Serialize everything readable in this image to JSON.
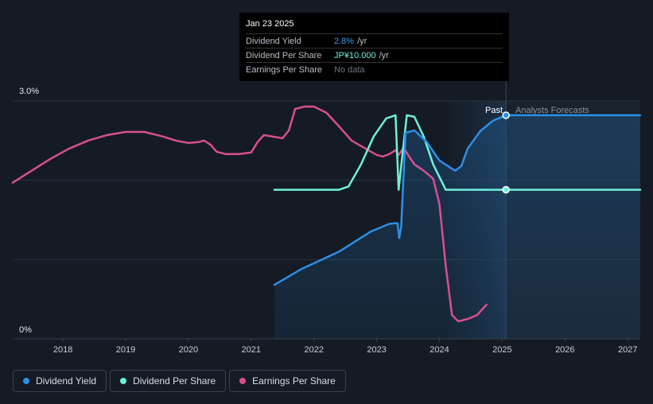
{
  "chart_data": {
    "type": "line",
    "x_axis": {
      "min": 2017.2,
      "max": 2027.2,
      "ticks": [
        "2018",
        "2019",
        "2020",
        "2021",
        "2022",
        "2023",
        "2024",
        "2025",
        "2026",
        "2027"
      ]
    },
    "y_axis": {
      "min": 0,
      "max": 3.0,
      "labels": {
        "top": "3.0%",
        "bottom": "0%"
      }
    },
    "past_label": "Past",
    "forecast_label": "Analysts Forecasts",
    "forecast_start": 2025.06,
    "series": [
      {
        "name": "Dividend Yield",
        "color": "#2d8fe6",
        "points": [
          [
            2021.37,
            0.68
          ],
          [
            2021.8,
            0.88
          ],
          [
            2022.4,
            1.1
          ],
          [
            2022.9,
            1.35
          ],
          [
            2023.2,
            1.45
          ],
          [
            2023.33,
            1.46
          ],
          [
            2023.36,
            1.27
          ],
          [
            2023.39,
            1.42
          ],
          [
            2023.46,
            2.6
          ],
          [
            2023.6,
            2.63
          ],
          [
            2023.8,
            2.48
          ],
          [
            2024.0,
            2.25
          ],
          [
            2024.25,
            2.12
          ],
          [
            2024.35,
            2.18
          ],
          [
            2024.45,
            2.4
          ],
          [
            2024.65,
            2.62
          ],
          [
            2024.85,
            2.75
          ],
          [
            2025.06,
            2.82
          ],
          [
            2026.0,
            2.82
          ],
          [
            2027.2,
            2.82
          ]
        ]
      },
      {
        "name": "Dividend Per Share",
        "color": "#6ff0da",
        "points": [
          [
            2021.37,
            1.88
          ],
          [
            2022.4,
            1.88
          ],
          [
            2022.55,
            1.92
          ],
          [
            2022.75,
            2.2
          ],
          [
            2022.95,
            2.55
          ],
          [
            2023.15,
            2.78
          ],
          [
            2023.3,
            2.82
          ],
          [
            2023.35,
            1.88
          ],
          [
            2023.42,
            2.4
          ],
          [
            2023.48,
            2.82
          ],
          [
            2023.6,
            2.8
          ],
          [
            2023.75,
            2.55
          ],
          [
            2023.9,
            2.2
          ],
          [
            2024.1,
            1.88
          ],
          [
            2024.4,
            1.88
          ],
          [
            2025.06,
            1.88
          ],
          [
            2026.0,
            1.88
          ],
          [
            2027.2,
            1.88
          ]
        ]
      },
      {
        "name": "Earnings Per Share",
        "color": "#d84f8f",
        "points": [
          [
            2017.2,
            1.97
          ],
          [
            2017.5,
            2.12
          ],
          [
            2017.8,
            2.27
          ],
          [
            2018.1,
            2.4
          ],
          [
            2018.4,
            2.5
          ],
          [
            2018.7,
            2.57
          ],
          [
            2019.0,
            2.61
          ],
          [
            2019.3,
            2.61
          ],
          [
            2019.6,
            2.55
          ],
          [
            2019.8,
            2.5
          ],
          [
            2020.0,
            2.47
          ],
          [
            2020.15,
            2.48
          ],
          [
            2020.25,
            2.5
          ],
          [
            2020.35,
            2.45
          ],
          [
            2020.45,
            2.36
          ],
          [
            2020.6,
            2.33
          ],
          [
            2020.8,
            2.33
          ],
          [
            2021.0,
            2.35
          ],
          [
            2021.1,
            2.48
          ],
          [
            2021.2,
            2.57
          ],
          [
            2021.35,
            2.55
          ],
          [
            2021.5,
            2.53
          ],
          [
            2021.6,
            2.63
          ],
          [
            2021.7,
            2.9
          ],
          [
            2021.85,
            2.93
          ],
          [
            2022.0,
            2.93
          ],
          [
            2022.2,
            2.85
          ],
          [
            2022.4,
            2.68
          ],
          [
            2022.6,
            2.5
          ],
          [
            2022.8,
            2.41
          ],
          [
            2023.0,
            2.32
          ],
          [
            2023.1,
            2.3
          ],
          [
            2023.2,
            2.33
          ],
          [
            2023.3,
            2.38
          ],
          [
            2023.35,
            2.32
          ],
          [
            2023.43,
            2.41
          ],
          [
            2023.5,
            2.32
          ],
          [
            2023.6,
            2.2
          ],
          [
            2023.75,
            2.12
          ],
          [
            2023.9,
            2.02
          ],
          [
            2024.0,
            1.7
          ],
          [
            2024.1,
            0.92
          ],
          [
            2024.2,
            0.3
          ],
          [
            2024.3,
            0.22
          ],
          [
            2024.45,
            0.25
          ],
          [
            2024.6,
            0.3
          ],
          [
            2024.75,
            0.43
          ]
        ]
      }
    ],
    "markers": [
      {
        "series": "Dividend Yield",
        "x": 2025.06,
        "y": 2.82
      },
      {
        "series": "Dividend Per Share",
        "x": 2025.06,
        "y": 1.88
      }
    ]
  },
  "tooltip": {
    "date": "Jan 23 2025",
    "rows": [
      {
        "name": "Dividend Yield",
        "value": "2.8%",
        "unit": "/yr"
      },
      {
        "name": "Dividend Per Share",
        "value": "JP¥10.000",
        "unit": "/yr"
      },
      {
        "name": "Earnings Per Share",
        "value": "No data",
        "unit": ""
      }
    ]
  },
  "legend": [
    {
      "label": "Dividend Yield",
      "color": "#2d8fe6"
    },
    {
      "label": "Dividend Per Share",
      "color": "#6ff0da"
    },
    {
      "label": "Earnings Per Share",
      "color": "#d84f8f"
    }
  ]
}
